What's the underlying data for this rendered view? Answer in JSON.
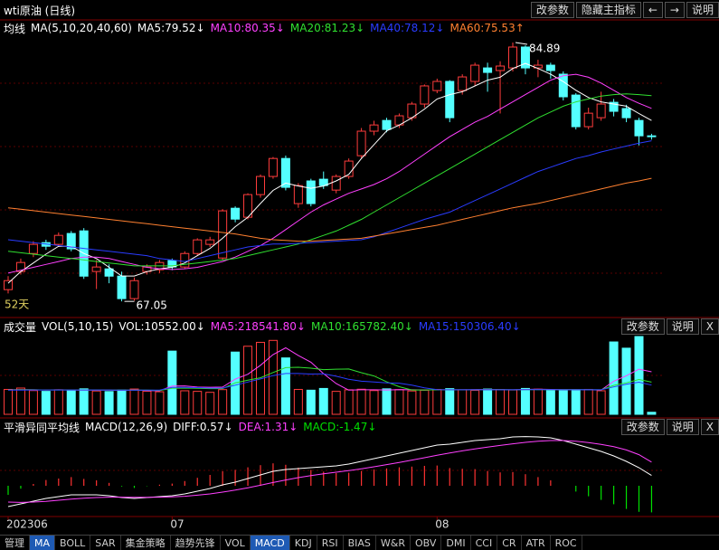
{
  "header": {
    "title": "wti原油 (日线)",
    "buttons": [
      "改参数",
      "隐藏主指标",
      "←",
      "→",
      "说明"
    ]
  },
  "panel_buttons": [
    "改参数",
    "说明",
    "X"
  ],
  "tabs": [
    {
      "label": "管理"
    },
    {
      "label": "MA",
      "active": true
    },
    {
      "label": "BOLL"
    },
    {
      "label": "SAR"
    },
    {
      "label": "集金策略"
    },
    {
      "label": "趋势先锋"
    },
    {
      "label": "VOL"
    },
    {
      "label": "MACD",
      "active": true
    },
    {
      "label": "KDJ"
    },
    {
      "label": "RSI"
    },
    {
      "label": "BIAS"
    },
    {
      "label": "W&R"
    },
    {
      "label": "OBV"
    },
    {
      "label": "DMI"
    },
    {
      "label": "CCI"
    },
    {
      "label": "CR"
    },
    {
      "label": "ATR"
    },
    {
      "label": "ROC"
    }
  ],
  "chart_data": [
    {
      "type": "candlestick",
      "legend_title": "均线",
      "legend_params": "MA(5,10,20,40,60)",
      "period_label": "52天",
      "categories": [
        "202306",
        null,
        null,
        null,
        null,
        null,
        null,
        null,
        null,
        null,
        null,
        null,
        null,
        "07",
        null,
        null,
        null,
        null,
        null,
        null,
        null,
        null,
        null,
        null,
        null,
        null,
        null,
        null,
        null,
        null,
        null,
        null,
        null,
        null,
        "08",
        null,
        null,
        null,
        null,
        null,
        null,
        null,
        null,
        null,
        null,
        null,
        null,
        null,
        null,
        null,
        null,
        null
      ],
      "up_color": "#ff3c3c",
      "down_color": "#54ffff",
      "ylim": [
        66,
        86.45
      ],
      "high_label": 84.89,
      "low_label": 67.05,
      "open": [
        67.86,
        69.11,
        70.35,
        71.1,
        70.98,
        71.73,
        71.91,
        69.11,
        69.29,
        68.79,
        67.24,
        69.11,
        69.23,
        69.86,
        69.42,
        70.35,
        70.98,
        70.04,
        73.47,
        72.85,
        74.41,
        75.66,
        76.9,
        73.79,
        75.35,
        75.47,
        74.72,
        75.66,
        77.09,
        78.78,
        79.52,
        79.21,
        79.71,
        80.65,
        81.58,
        82.21,
        81.58,
        82.21,
        83.14,
        82.96,
        83.14,
        84.58,
        83.14,
        83.33,
        82.71,
        81.27,
        79.09,
        79.71,
        80.77,
        80.34,
        79.52,
        78.46
      ],
      "high": [
        68.79,
        70.0,
        71.2,
        71.3,
        71.8,
        71.9,
        72.1,
        69.9,
        69.6,
        69.1,
        68.7,
        69.6,
        69.9,
        70.0,
        70.5,
        71.4,
        71.5,
        73.4,
        73.6,
        74.5,
        75.8,
        77.0,
        77.1,
        75.2,
        75.5,
        76.0,
        75.8,
        76.9,
        79.0,
        79.5,
        79.7,
        80.0,
        80.8,
        82.0,
        82.4,
        82.3,
        82.7,
        83.5,
        83.5,
        83.6,
        84.89,
        84.7,
        83.7,
        83.5,
        82.9,
        81.4,
        80.4,
        81.5,
        81.0,
        80.6,
        79.7,
        78.6
      ],
      "low": [
        67.6,
        68.9,
        70.1,
        70.6,
        70.8,
        70.5,
        68.6,
        67.9,
        68.3,
        67.05,
        67.1,
        68.9,
        69.0,
        69.2,
        69.3,
        70.2,
        70.8,
        69.9,
        72.5,
        72.7,
        74.2,
        75.5,
        74.7,
        73.5,
        73.6,
        74.8,
        74.5,
        75.5,
        76.9,
        78.5,
        78.7,
        79.0,
        79.5,
        80.4,
        81.4,
        79.4,
        81.3,
        81.9,
        81.5,
        80.0,
        82.9,
        82.7,
        82.5,
        82.4,
        80.9,
        78.9,
        78.9,
        79.5,
        79.8,
        79.4,
        77.8,
        78.2
      ],
      "close": [
        68.48,
        69.73,
        70.98,
        70.85,
        71.6,
        70.67,
        68.79,
        69.42,
        68.79,
        67.24,
        68.48,
        69.42,
        69.73,
        69.42,
        70.35,
        71.29,
        71.29,
        73.29,
        72.72,
        74.41,
        75.66,
        76.9,
        74.91,
        75.03,
        73.79,
        75.03,
        75.66,
        76.72,
        78.78,
        79.21,
        78.9,
        79.84,
        80.65,
        81.9,
        82.21,
        79.71,
        82.52,
        83.33,
        82.83,
        83.27,
        84.58,
        83.14,
        83.33,
        82.96,
        81.15,
        79.09,
        80.02,
        80.65,
        80.15,
        79.71,
        78.46,
        78.4
      ],
      "series": [
        {
          "name": "MA5:79.52↓",
          "color": "#ffffff",
          "values": [
            68.3,
            69.1,
            69.7,
            70.3,
            70.85,
            70.85,
            70.35,
            70.0,
            69.4,
            68.8,
            68.8,
            69.1,
            69.3,
            69.4,
            69.7,
            70.2,
            70.7,
            71.4,
            72.2,
            72.85,
            73.8,
            74.7,
            75.2,
            75.0,
            74.85,
            75.0,
            75.35,
            75.8,
            76.9,
            77.85,
            78.8,
            79.2,
            79.7,
            80.3,
            81.0,
            81.3,
            81.5,
            81.9,
            82.3,
            82.5,
            83.1,
            83.45,
            83.1,
            82.7,
            82.2,
            81.6,
            81.1,
            80.8,
            80.65,
            80.5,
            80.0,
            79.52
          ]
        },
        {
          "name": "MA10:80.35↓",
          "color": "#ff40ff",
          "values": [
            69.0,
            69.2,
            69.4,
            69.6,
            69.8,
            70.0,
            70.1,
            70.1,
            70.0,
            69.8,
            69.6,
            69.4,
            69.3,
            69.25,
            69.3,
            69.4,
            69.6,
            69.8,
            70.1,
            70.5,
            70.9,
            71.4,
            72.0,
            72.6,
            73.2,
            73.7,
            74.1,
            74.5,
            74.8,
            75.1,
            75.5,
            76.0,
            76.6,
            77.2,
            77.8,
            78.4,
            78.9,
            79.4,
            79.8,
            80.3,
            80.8,
            81.3,
            81.8,
            82.3,
            82.6,
            82.7,
            82.5,
            82.1,
            81.6,
            81.1,
            80.7,
            80.35
          ]
        },
        {
          "name": "MA20:81.23↓",
          "color": "#30e030",
          "values": [
            70.5,
            70.4,
            70.3,
            70.2,
            70.1,
            70.0,
            69.9,
            69.8,
            69.7,
            69.6,
            69.5,
            69.5,
            69.5,
            69.5,
            69.6,
            69.7,
            69.8,
            69.9,
            70.0,
            70.2,
            70.4,
            70.6,
            70.8,
            71.0,
            71.3,
            71.6,
            71.9,
            72.3,
            72.7,
            73.2,
            73.7,
            74.2,
            74.7,
            75.2,
            75.7,
            76.2,
            76.7,
            77.2,
            77.7,
            78.2,
            78.7,
            79.2,
            79.7,
            80.1,
            80.5,
            80.8,
            81.0,
            81.2,
            81.3,
            81.35,
            81.3,
            81.23
          ]
        },
        {
          "name": "MA40:78.12↓",
          "color": "#2a3cff",
          "values": [
            71.3,
            71.2,
            71.1,
            71.0,
            70.9,
            70.8,
            70.7,
            70.6,
            70.5,
            70.4,
            70.3,
            70.2,
            70.0,
            69.9,
            69.8,
            70.0,
            70.2,
            70.4,
            70.6,
            70.8,
            70.9,
            71.0,
            71.0,
            71.05,
            71.1,
            71.15,
            71.2,
            71.25,
            71.3,
            71.5,
            71.8,
            72.1,
            72.4,
            72.7,
            72.95,
            73.2,
            73.6,
            74.0,
            74.4,
            74.8,
            75.2,
            75.6,
            76.0,
            76.3,
            76.6,
            76.9,
            77.1,
            77.35,
            77.55,
            77.75,
            77.95,
            78.12
          ]
        },
        {
          "name": "MA60:75.53↑",
          "color": "#ff8030",
          "values": [
            73.5,
            73.4,
            73.3,
            73.2,
            73.1,
            73.0,
            72.9,
            72.8,
            72.7,
            72.6,
            72.5,
            72.4,
            72.3,
            72.2,
            72.1,
            72.0,
            71.9,
            71.8,
            71.7,
            71.55,
            71.4,
            71.3,
            71.25,
            71.2,
            71.2,
            71.25,
            71.3,
            71.35,
            71.4,
            71.55,
            71.7,
            71.85,
            72.0,
            72.15,
            72.3,
            72.5,
            72.7,
            72.9,
            73.1,
            73.3,
            73.5,
            73.65,
            73.8,
            74.0,
            74.2,
            74.4,
            74.6,
            74.8,
            75.0,
            75.2,
            75.35,
            75.53
          ]
        }
      ]
    },
    {
      "type": "volume",
      "legend_title": "成交量",
      "legend_params": "VOL(5,10,15)",
      "vol_label": "VOL:10552.00↓",
      "up_color": "#ff3c3c",
      "down_color": "#54ffff",
      "ylim": [
        0,
        400000
      ],
      "values": [
        128000,
        135000,
        122000,
        118000,
        126000,
        124000,
        131000,
        120000,
        117000,
        125000,
        130000,
        119000,
        116000,
        325000,
        121000,
        118000,
        113000,
        127000,
        320000,
        350000,
        370000,
        380000,
        290000,
        128000,
        124000,
        133000,
        118000,
        126000,
        129000,
        122000,
        131000,
        127000,
        120000,
        124000,
        128000,
        132000,
        126000,
        123000,
        130000,
        127000,
        125000,
        133000,
        129000,
        124000,
        122000,
        126000,
        128000,
        121000,
        372000,
        340000,
        400000,
        10552
      ],
      "series": [
        {
          "name": "MA5:218541.80↓",
          "color": "#ff40ff",
          "values": [
            126000,
            127000,
            126000,
            125000,
            126000,
            125000,
            124000,
            124000,
            124000,
            123000,
            125000,
            122000,
            121000,
            145000,
            146000,
            140000,
            139000,
            140000,
            181000,
            206000,
            252000,
            307000,
            342000,
            303000,
            268000,
            209000,
            158000,
            124000,
            126000,
            126000,
            125000,
            127000,
            126000,
            125000,
            126000,
            126000,
            126000,
            127000,
            128000,
            127000,
            126000,
            128000,
            129000,
            128000,
            127000,
            127000,
            126000,
            124000,
            170000,
            198000,
            232000,
            218541.8
          ]
        },
        {
          "name": "MA10:165782.40↓",
          "color": "#30e030",
          "values": [
            125000,
            126000,
            126000,
            125000,
            125000,
            125000,
            125000,
            125000,
            125000,
            124000,
            124000,
            124000,
            123000,
            134000,
            135000,
            134000,
            132000,
            132000,
            162000,
            176000,
            188000,
            215000,
            240000,
            242000,
            237000,
            230000,
            232000,
            233000,
            214000,
            197000,
            167000,
            142000,
            125000,
            125000,
            126000,
            126000,
            126000,
            126000,
            127000,
            127000,
            126000,
            127000,
            127000,
            126000,
            127000,
            127000,
            127000,
            126000,
            149000,
            162000,
            179000,
            165782.4
          ]
        },
        {
          "name": "MA15:150306.40↓",
          "color": "#2a3cff",
          "values": [
            124000,
            124000,
            125000,
            125000,
            125000,
            125000,
            125000,
            125000,
            125000,
            124000,
            124000,
            124000,
            124000,
            138000,
            138000,
            137000,
            135000,
            135000,
            150000,
            166000,
            182000,
            199000,
            210000,
            210000,
            207000,
            208000,
            196000,
            180000,
            170000,
            166000,
            162000,
            160000,
            150000,
            136000,
            127000,
            126000,
            126000,
            126000,
            126000,
            126000,
            126000,
            127000,
            127000,
            127000,
            126000,
            126000,
            127000,
            126000,
            141000,
            155000,
            165000,
            150306.4
          ]
        }
      ]
    },
    {
      "type": "macd",
      "legend_title": "平滑异同平均线",
      "legend_params": "MACD(12,26,9)",
      "ylim": [
        -1.65,
        2.85
      ],
      "hist": {
        "name": "MACD:-1.47↓",
        "up_color": "#ff3232",
        "down_color": "#00e000",
        "values": [
          -0.5,
          -0.16,
          0.1,
          0.32,
          0.4,
          0.48,
          0.38,
          0.3,
          0.16,
          -0.04,
          -0.12,
          -0.02,
          0.06,
          0.12,
          0.26,
          0.44,
          0.6,
          0.8,
          0.88,
          1.02,
          1.14,
          1.24,
          1.16,
          1.0,
          0.88,
          0.78,
          0.7,
          0.72,
          0.82,
          0.9,
          0.96,
          1.02,
          1.06,
          1.1,
          1.12,
          0.98,
          0.94,
          0.92,
          0.82,
          0.74,
          0.76,
          0.64,
          0.48,
          0.3,
          0.0,
          -0.32,
          -0.58,
          -0.78,
          -1.02,
          -1.28,
          -1.44,
          -1.47
        ]
      },
      "series": [
        {
          "name": "DIFF:0.57↓",
          "color": "#ffffff",
          "values": [
            -1.15,
            -1.0,
            -0.85,
            -0.7,
            -0.6,
            -0.5,
            -0.5,
            -0.5,
            -0.55,
            -0.65,
            -0.7,
            -0.65,
            -0.6,
            -0.55,
            -0.45,
            -0.3,
            -0.15,
            0.05,
            0.2,
            0.4,
            0.6,
            0.8,
            0.9,
            0.95,
            1.0,
            1.05,
            1.1,
            1.2,
            1.35,
            1.5,
            1.65,
            1.8,
            1.95,
            2.1,
            2.25,
            2.3,
            2.4,
            2.5,
            2.55,
            2.6,
            2.7,
            2.72,
            2.7,
            2.65,
            2.5,
            2.3,
            2.1,
            1.9,
            1.65,
            1.35,
            1.0,
            0.57
          ]
        },
        {
          "name": "DEA:1.31↓",
          "color": "#ff40ff",
          "values": [
            -0.9,
            -0.92,
            -0.9,
            -0.86,
            -0.8,
            -0.74,
            -0.69,
            -0.65,
            -0.63,
            -0.63,
            -0.64,
            -0.64,
            -0.63,
            -0.61,
            -0.58,
            -0.52,
            -0.45,
            -0.35,
            -0.24,
            -0.11,
            0.03,
            0.18,
            0.32,
            0.45,
            0.56,
            0.66,
            0.75,
            0.84,
            0.94,
            1.05,
            1.17,
            1.29,
            1.42,
            1.55,
            1.69,
            1.81,
            1.93,
            2.04,
            2.14,
            2.23,
            2.32,
            2.4,
            2.46,
            2.5,
            2.5,
            2.46,
            2.39,
            2.29,
            2.16,
            1.98,
            1.72,
            1.31
          ]
        }
      ]
    }
  ]
}
